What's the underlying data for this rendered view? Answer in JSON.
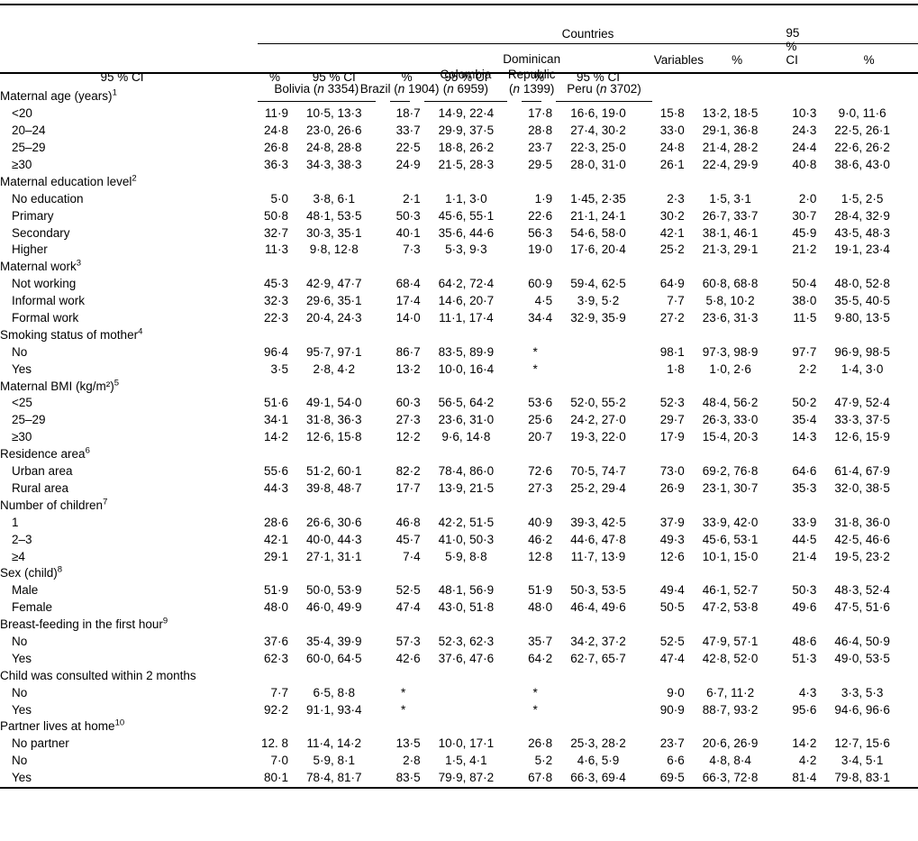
{
  "table": {
    "countries_label": "Countries",
    "variables_label": "Variables",
    "col_pct": "%",
    "col_ci": "95 % CI",
    "countries": [
      {
        "id": "bolivia",
        "name_lines": [
          "Bolivia"
        ],
        "n": "3354",
        "n_inline": true
      },
      {
        "id": "brazil",
        "name_lines": [
          "Brazil"
        ],
        "n": "1904",
        "n_inline": true
      },
      {
        "id": "colombia",
        "name_lines": [
          "Colombia"
        ],
        "n": "6959",
        "n_inline": false
      },
      {
        "id": "dominican-republic",
        "name_lines": [
          "Dominican",
          "Republic"
        ],
        "n": "1399",
        "n_inline": false
      },
      {
        "id": "peru",
        "name_lines": [
          "Peru"
        ],
        "n": "3702",
        "n_inline": true
      }
    ],
    "sections": [
      {
        "label": "Maternal age (years)",
        "sup": "1",
        "rows": [
          {
            "label": "<20",
            "cells": [
              [
                "11·9",
                "10·5, 13·3"
              ],
              [
                "18·7",
                "14·9, 22·4"
              ],
              [
                "17·8",
                "16·6, 19·0"
              ],
              [
                "15·8",
                "13·2, 18·5"
              ],
              [
                "10·3",
                "9·0, 11·6"
              ]
            ]
          },
          {
            "label": "20–24",
            "cells": [
              [
                "24·8",
                "23·0, 26·6"
              ],
              [
                "33·7",
                "29·9, 37·5"
              ],
              [
                "28·8",
                "27·4, 30·2"
              ],
              [
                "33·0",
                "29·1, 36·8"
              ],
              [
                "24·3",
                "22·5, 26·1"
              ]
            ]
          },
          {
            "label": "25–29",
            "cells": [
              [
                "26·8",
                "24·8, 28·8"
              ],
              [
                "22·5",
                "18·8, 26·2"
              ],
              [
                "23·7",
                "22·3, 25·0"
              ],
              [
                "24·8",
                "21·4, 28·2"
              ],
              [
                "24·4",
                "22·6, 26·2"
              ]
            ]
          },
          {
            "label": "≥30",
            "cells": [
              [
                "36·3",
                "34·3, 38·3"
              ],
              [
                "24·9",
                "21·5, 28·3"
              ],
              [
                "29·5",
                "28·0, 31·0"
              ],
              [
                "26·1",
                "22·4, 29·9"
              ],
              [
                "40·8",
                "38·6, 43·0"
              ]
            ]
          }
        ]
      },
      {
        "label": "Maternal education level",
        "sup": "2",
        "rows": [
          {
            "label": "No education",
            "cells": [
              [
                "5·0",
                "3·8, 6·1"
              ],
              [
                "2·1",
                "1·1, 3·0"
              ],
              [
                "1·9",
                "1·45, 2·35"
              ],
              [
                "2·3",
                "1·5, 3·1"
              ],
              [
                "2·0",
                "1·5, 2·5"
              ]
            ]
          },
          {
            "label": "Primary",
            "cells": [
              [
                "50·8",
                "48·1, 53·5"
              ],
              [
                "50·3",
                "45·6, 55·1"
              ],
              [
                "22·6",
                "21·1, 24·1"
              ],
              [
                "30·2",
                "26·7, 33·7"
              ],
              [
                "30·7",
                "28·4, 32·9"
              ]
            ]
          },
          {
            "label": "Secondary",
            "cells": [
              [
                "32·7",
                "30·3, 35·1"
              ],
              [
                "40·1",
                "35·6, 44·6"
              ],
              [
                "56·3",
                "54·6, 58·0"
              ],
              [
                "42·1",
                "38·1, 46·1"
              ],
              [
                "45·9",
                "43·5, 48·3"
              ]
            ]
          },
          {
            "label": "Higher",
            "cells": [
              [
                "11·3",
                "9·8, 12·8"
              ],
              [
                "7·3",
                "5·3, 9·3"
              ],
              [
                "19·0",
                "17·6, 20·4"
              ],
              [
                "25·2",
                "21·3, 29·1"
              ],
              [
                "21·2",
                "19·1, 23·4"
              ]
            ]
          }
        ]
      },
      {
        "label": "Maternal work",
        "sup": "3",
        "rows": [
          {
            "label": "Not working",
            "cells": [
              [
                "45·3",
                "42·9, 47·7"
              ],
              [
                "68·4",
                "64·2, 72·4"
              ],
              [
                "60·9",
                "59·4, 62·5"
              ],
              [
                "64·9",
                "60·8, 68·8"
              ],
              [
                "50·4",
                "48·0, 52·8"
              ]
            ]
          },
          {
            "label": "Informal work",
            "cells": [
              [
                "32·3",
                "29·6, 35·1"
              ],
              [
                "17·4",
                "14·6, 20·7"
              ],
              [
                "4·5",
                "3·9, 5·2"
              ],
              [
                "7·7",
                "5·8, 10·2"
              ],
              [
                "38·0",
                "35·5, 40·5"
              ]
            ]
          },
          {
            "label": "Formal work",
            "cells": [
              [
                "22·3",
                "20·4, 24·3"
              ],
              [
                "14·0",
                "11·1, 17·4"
              ],
              [
                "34·4",
                "32·9, 35·9"
              ],
              [
                "27·2",
                "23·6, 31·3"
              ],
              [
                "11·5",
                "9·80, 13·5"
              ]
            ]
          }
        ]
      },
      {
        "label": "Smoking status of mother",
        "sup": "4",
        "rows": [
          {
            "label": "No",
            "cells": [
              [
                "96·4",
                "95·7, 97·1"
              ],
              [
                "86·7",
                "83·5, 89·9"
              ],
              [
                "*",
                ""
              ],
              [
                "98·1",
                "97·3, 98·9"
              ],
              [
                "97·7",
                "96·9, 98·5"
              ]
            ]
          },
          {
            "label": "Yes",
            "cells": [
              [
                "3·5",
                "2·8, 4·2"
              ],
              [
                "13·2",
                "10·0, 16·4"
              ],
              [
                "*",
                ""
              ],
              [
                "1·8",
                "1·0, 2·6"
              ],
              [
                "2·2",
                "1·4, 3·0"
              ]
            ]
          }
        ]
      },
      {
        "label": "Maternal BMI (kg/m²)",
        "sup": "5",
        "rows": [
          {
            "label": "<25",
            "cells": [
              [
                "51·6",
                "49·1, 54·0"
              ],
              [
                "60·3",
                "56·5, 64·2"
              ],
              [
                "53·6",
                "52·0, 55·2"
              ],
              [
                "52·3",
                "48·4, 56·2"
              ],
              [
                "50·2",
                "47·9, 52·4"
              ]
            ]
          },
          {
            "label": "25–29",
            "cells": [
              [
                "34·1",
                "31·8, 36·3"
              ],
              [
                "27·3",
                "23·6, 31·0"
              ],
              [
                "25·6",
                "24·2, 27·0"
              ],
              [
                "29·7",
                "26·3, 33·0"
              ],
              [
                "35·4",
                "33·3, 37·5"
              ]
            ]
          },
          {
            "label": "≥30",
            "cells": [
              [
                "14·2",
                "12·6, 15·8"
              ],
              [
                "12·2",
                "9·6, 14·8"
              ],
              [
                "20·7",
                "19·3, 22·0"
              ],
              [
                "17·9",
                "15·4, 20·3"
              ],
              [
                "14·3",
                "12·6, 15·9"
              ]
            ]
          }
        ]
      },
      {
        "label": "Residence area",
        "sup": "6",
        "rows": [
          {
            "label": "Urban area",
            "cells": [
              [
                "55·6",
                "51·2, 60·1"
              ],
              [
                "82·2",
                "78·4, 86·0"
              ],
              [
                "72·6",
                "70·5, 74·7"
              ],
              [
                "73·0",
                "69·2, 76·8"
              ],
              [
                "64·6",
                "61·4, 67·9"
              ]
            ]
          },
          {
            "label": "Rural area",
            "cells": [
              [
                "44·3",
                "39·8, 48·7"
              ],
              [
                "17·7",
                "13·9, 21·5"
              ],
              [
                "27·3",
                "25·2, 29·4"
              ],
              [
                "26·9",
                "23·1, 30·7"
              ],
              [
                "35·3",
                "32·0, 38·5"
              ]
            ]
          }
        ]
      },
      {
        "label": "Number of children",
        "sup": "7",
        "rows": [
          {
            "label": "1",
            "cells": [
              [
                "28·6",
                "26·6, 30·6"
              ],
              [
                "46·8",
                "42·2, 51·5"
              ],
              [
                "40·9",
                "39·3, 42·5"
              ],
              [
                "37·9",
                "33·9, 42·0"
              ],
              [
                "33·9",
                "31·8, 36·0"
              ]
            ]
          },
          {
            "label": "2–3",
            "cells": [
              [
                "42·1",
                "40·0, 44·3"
              ],
              [
                "45·7",
                "41·0, 50·3"
              ],
              [
                "46·2",
                "44·6, 47·8"
              ],
              [
                "49·3",
                "45·6, 53·1"
              ],
              [
                "44·5",
                "42·5, 46·6"
              ]
            ]
          },
          {
            "label": "≥4",
            "cells": [
              [
                "29·1",
                "27·1, 31·1"
              ],
              [
                "7·4",
                "5·9, 8·8"
              ],
              [
                "12·8",
                "11·7, 13·9"
              ],
              [
                "12·6",
                "10·1, 15·0"
              ],
              [
                "21·4",
                "19·5, 23·2"
              ]
            ]
          }
        ]
      },
      {
        "label": "Sex (child)",
        "sup": "8",
        "rows": [
          {
            "label": "Male",
            "cells": [
              [
                "51·9",
                "50·0, 53·9"
              ],
              [
                "52·5",
                "48·1, 56·9"
              ],
              [
                "51·9",
                "50·3, 53·5"
              ],
              [
                "49·4",
                "46·1, 52·7"
              ],
              [
                "50·3",
                "48·3, 52·4"
              ]
            ]
          },
          {
            "label": "Female",
            "cells": [
              [
                "48·0",
                "46·0, 49·9"
              ],
              [
                "47·4",
                "43·0, 51·8"
              ],
              [
                "48·0",
                "46·4, 49·6"
              ],
              [
                "50·5",
                "47·2, 53·8"
              ],
              [
                "49·6",
                "47·5, 51·6"
              ]
            ]
          }
        ]
      },
      {
        "label": "Breast-feeding in the first hour",
        "sup": "9",
        "rows": [
          {
            "label": "No",
            "cells": [
              [
                "37·6",
                "35·4, 39·9"
              ],
              [
                "57·3",
                "52·3, 62·3"
              ],
              [
                "35·7",
                "34·2, 37·2"
              ],
              [
                "52·5",
                "47·9, 57·1"
              ],
              [
                "48·6",
                "46·4, 50·9"
              ]
            ]
          },
          {
            "label": "Yes",
            "cells": [
              [
                "62·3",
                "60·0, 64·5"
              ],
              [
                "42·6",
                "37·6, 47·6"
              ],
              [
                "64·2",
                "62·7, 65·7"
              ],
              [
                "47·4",
                "42·8, 52·0"
              ],
              [
                "51·3",
                "49·0, 53·5"
              ]
            ]
          }
        ]
      },
      {
        "label": "Child was consulted within 2 months",
        "sup": "",
        "rows": [
          {
            "label": "No",
            "cells": [
              [
                "7·7",
                "6·5, 8·8"
              ],
              [
                "*",
                ""
              ],
              [
                "*",
                ""
              ],
              [
                "9·0",
                "6·7, 11·2"
              ],
              [
                "4·3",
                "3·3, 5·3"
              ]
            ]
          },
          {
            "label": "Yes",
            "cells": [
              [
                "92·2",
                "91·1, 93·4"
              ],
              [
                "*",
                ""
              ],
              [
                "*",
                ""
              ],
              [
                "90·9",
                "88·7, 93·2"
              ],
              [
                "95·6",
                "94·6, 96·6"
              ]
            ]
          }
        ]
      },
      {
        "label": "Partner lives at home",
        "sup": "10",
        "rows": [
          {
            "label": "No partner",
            "cells": [
              [
                "12. 8",
                "11·4, 14·2"
              ],
              [
                "13·5",
                "10·0, 17·1"
              ],
              [
                "26·8",
                "25·3, 28·2"
              ],
              [
                "23·7",
                "20·6, 26·9"
              ],
              [
                "14·2",
                "12·7, 15·6"
              ]
            ]
          },
          {
            "label": "No",
            "cells": [
              [
                "7·0",
                "5·9, 8·1"
              ],
              [
                "2·8",
                "1·5, 4·1"
              ],
              [
                "5·2",
                "4·6, 5·9"
              ],
              [
                "6·6",
                "4·8, 8·4"
              ],
              [
                "4·2",
                "3·4, 5·1"
              ]
            ]
          },
          {
            "label": "Yes",
            "cells": [
              [
                "80·1",
                "78·4, 81·7"
              ],
              [
                "83·5",
                "79·9, 87·2"
              ],
              [
                "67·8",
                "66·3, 69·4"
              ],
              [
                "69·5",
                "66·3, 72·8"
              ],
              [
                "81·4",
                "79·8, 83·1"
              ]
            ]
          }
        ]
      }
    ]
  }
}
